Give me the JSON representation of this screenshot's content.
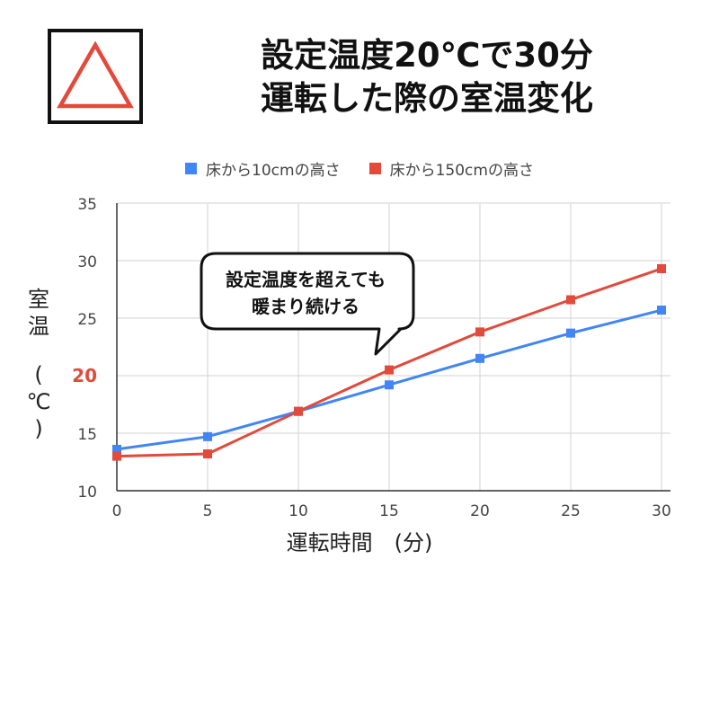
{
  "title": {
    "line1": "設定温度20℃で30分",
    "line2": "運転した際の室温変化"
  },
  "badge": {
    "icon": "triangle-rating-icon",
    "color": "#e24a3b"
  },
  "annotation": {
    "line1": "設定温度を超えても",
    "line2": "暖まり続ける"
  },
  "chart_data": {
    "type": "line",
    "x": [
      0,
      5,
      10,
      15,
      20,
      25,
      30
    ],
    "xlabel": "運転時間　(分)",
    "ylabel": "室温 (℃)",
    "ylabel_chars": [
      "室",
      "温",
      "(",
      "℃",
      ")"
    ],
    "ylim": [
      10,
      35
    ],
    "xlim": [
      0,
      30
    ],
    "yticks": [
      10,
      15,
      20,
      25,
      30,
      35
    ],
    "xticks": [
      0,
      5,
      10,
      15,
      20,
      25,
      30
    ],
    "highlight_ytick": {
      "value": 20,
      "color": "#e24a3b"
    },
    "grid": true,
    "legend_position": "top",
    "series": [
      {
        "name": "床から10cmの高さ",
        "color": "#4285f4",
        "values": [
          13.6,
          14.7,
          16.9,
          19.2,
          21.5,
          23.7,
          25.7
        ]
      },
      {
        "name": "床から150cmの高さ",
        "color": "#e24a3b",
        "values": [
          13.0,
          13.2,
          16.9,
          20.5,
          23.8,
          26.6,
          29.3
        ]
      }
    ]
  }
}
